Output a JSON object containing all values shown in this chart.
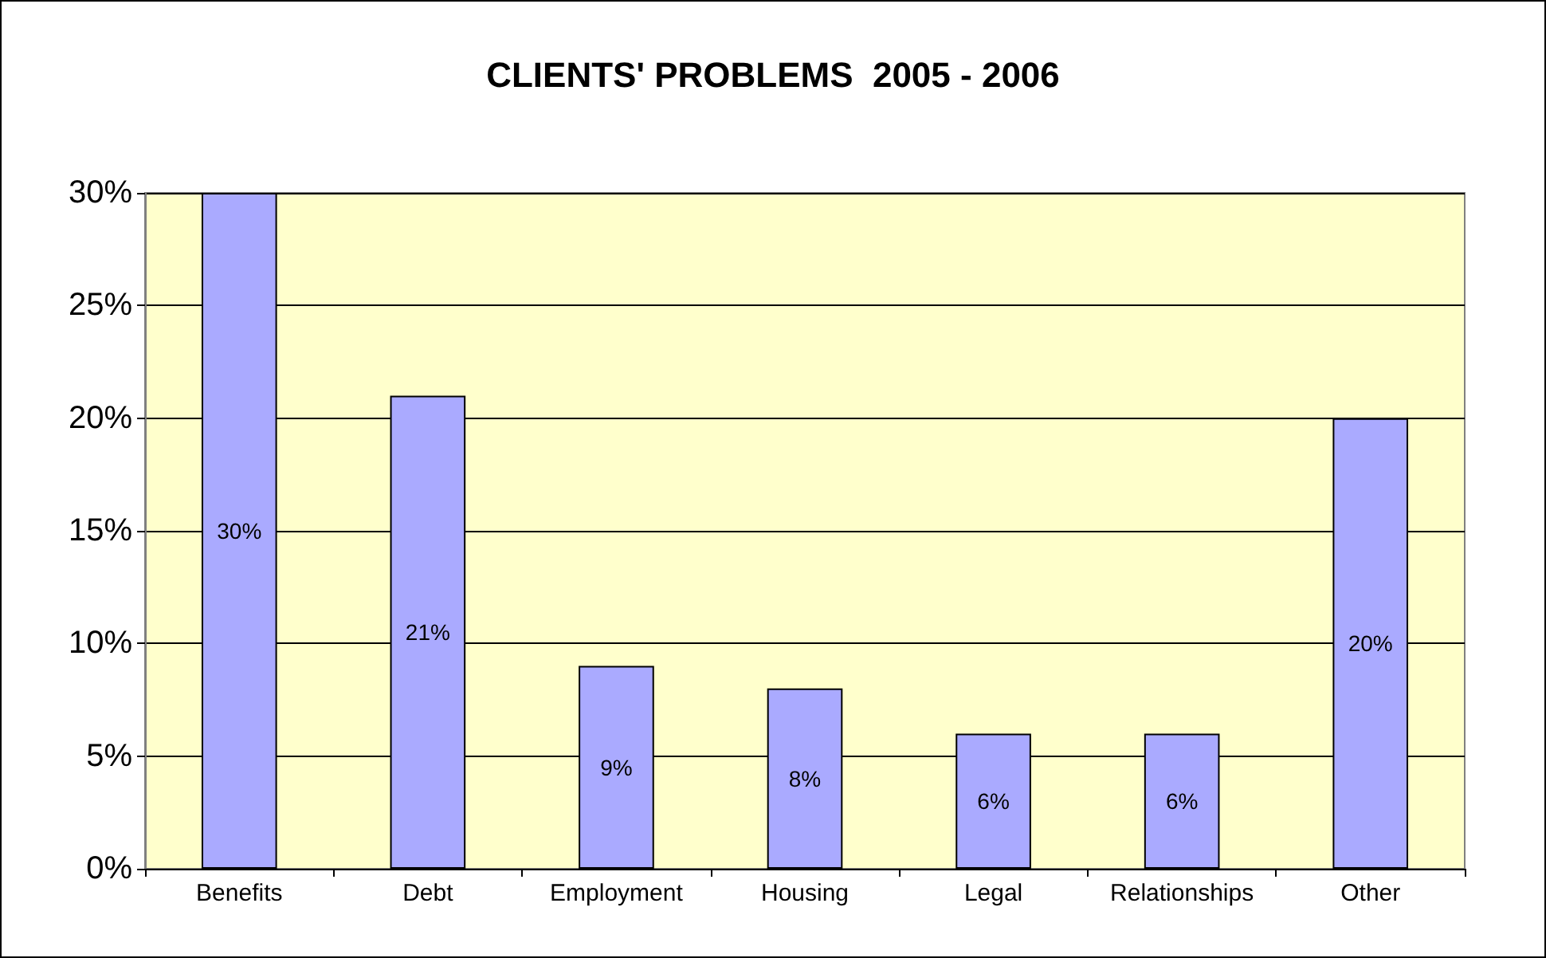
{
  "chart_data": {
    "type": "bar",
    "title": "CLIENTS' PROBLEMS  2005 - 2006",
    "categories": [
      "Benefits",
      "Debt",
      "Employment",
      "Housing",
      "Legal",
      "Relationships",
      "Other"
    ],
    "values": [
      30,
      21,
      9,
      8,
      6,
      6,
      20
    ],
    "value_labels": [
      "30%",
      "21%",
      "9%",
      "8%",
      "6%",
      "6%",
      "20%"
    ],
    "color": "#aaaaff",
    "ylim": [
      0,
      30
    ],
    "yticks": [
      {
        "value": 0,
        "label": "0%"
      },
      {
        "value": 5,
        "label": "5%"
      },
      {
        "value": 10,
        "label": "10%"
      },
      {
        "value": 15,
        "label": "15%"
      },
      {
        "value": 20,
        "label": "20%"
      },
      {
        "value": 25,
        "label": "25%"
      },
      {
        "value": 30,
        "label": "30%"
      }
    ],
    "grid": "y"
  }
}
